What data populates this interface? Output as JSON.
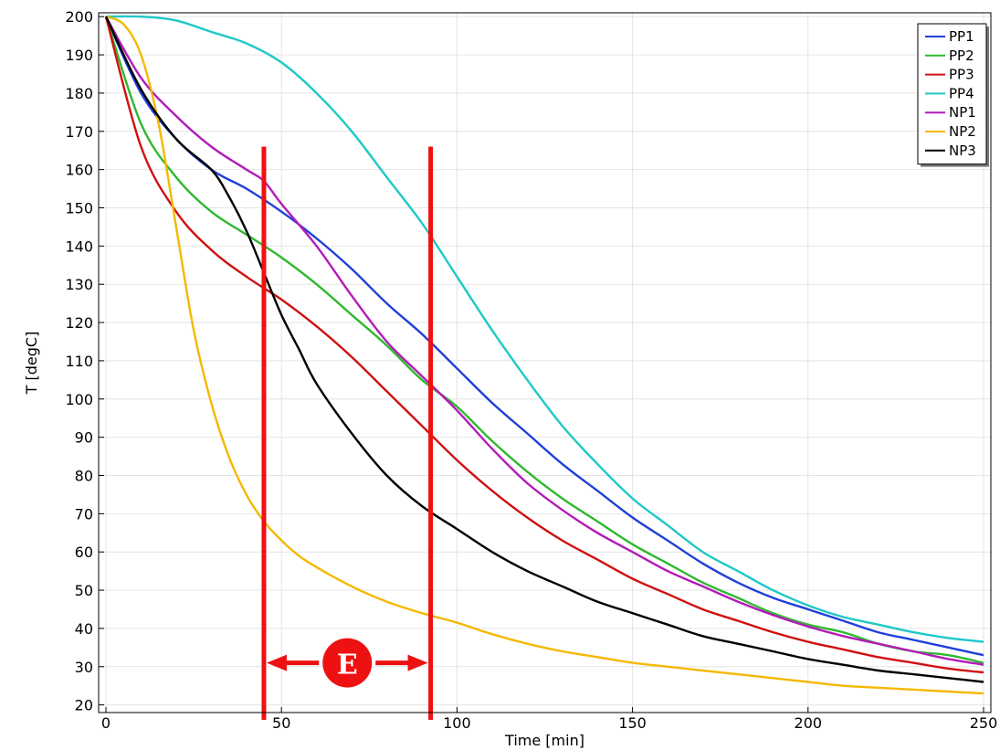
{
  "chart_data": {
    "type": "line",
    "xlabel": "Time [min]",
    "ylabel": "T [degC]",
    "xlim": [
      0,
      250
    ],
    "ylim": [
      18,
      201
    ],
    "xticks": [
      0,
      50,
      100,
      150,
      200,
      250
    ],
    "yticks": [
      20,
      30,
      40,
      50,
      60,
      70,
      80,
      90,
      100,
      110,
      120,
      130,
      140,
      150,
      160,
      170,
      180,
      190,
      200
    ],
    "grid": true,
    "legend_position": "top-right",
    "series": [
      {
        "name": "PP1",
        "color": "#1f3fd8",
        "x": [
          0,
          10,
          20,
          30,
          40,
          50,
          60,
          70,
          80,
          90,
          100,
          110,
          120,
          130,
          140,
          150,
          160,
          170,
          180,
          190,
          200,
          210,
          220,
          230,
          240,
          250
        ],
        "y": [
          200,
          180,
          168,
          160,
          155,
          149,
          142,
          134,
          125,
          117,
          108,
          99,
          91,
          83,
          76,
          69,
          63,
          57,
          52,
          48,
          45,
          42,
          39,
          37,
          35,
          33
        ]
      },
      {
        "name": "PP2",
        "color": "#2fb82f",
        "x": [
          0,
          10,
          20,
          30,
          40,
          50,
          60,
          70,
          80,
          90,
          100,
          110,
          120,
          130,
          140,
          150,
          160,
          170,
          180,
          190,
          200,
          210,
          220,
          230,
          240,
          250
        ],
        "y": [
          200,
          172,
          158,
          149,
          143,
          137,
          130,
          122,
          114,
          105,
          98,
          89,
          81,
          74,
          68,
          62,
          57,
          52,
          48,
          44,
          41,
          39,
          36,
          34,
          33,
          31
        ]
      },
      {
        "name": "PP3",
        "color": "#d01010",
        "x": [
          0,
          10,
          20,
          30,
          40,
          50,
          60,
          70,
          80,
          90,
          100,
          110,
          120,
          130,
          140,
          150,
          160,
          170,
          180,
          190,
          200,
          210,
          220,
          230,
          240,
          250
        ],
        "y": [
          200,
          166,
          149,
          139,
          132,
          126,
          119,
          111,
          102,
          93,
          84,
          76,
          69,
          63,
          58,
          53,
          49,
          45,
          42,
          39,
          36.5,
          34.5,
          32.5,
          31,
          29.5,
          28.5
        ]
      },
      {
        "name": "PP4",
        "color": "#1ec8c8",
        "x": [
          0,
          10,
          20,
          30,
          40,
          50,
          60,
          70,
          80,
          90,
          100,
          110,
          120,
          130,
          140,
          150,
          160,
          170,
          180,
          190,
          200,
          210,
          220,
          230,
          240,
          250
        ],
        "y": [
          200,
          200,
          199,
          196,
          193,
          188,
          180,
          170,
          158,
          146,
          132,
          118,
          105,
          93,
          83,
          74,
          67,
          60,
          55,
          50,
          46,
          43,
          41,
          39,
          37.5,
          36.5
        ]
      },
      {
        "name": "NP1",
        "color": "#b21bb8",
        "x": [
          0,
          10,
          20,
          30,
          40,
          45,
          50,
          60,
          70,
          80,
          90,
          100,
          110,
          120,
          130,
          140,
          150,
          160,
          170,
          180,
          190,
          200,
          210,
          220,
          230,
          240,
          250
        ],
        "y": [
          200,
          184,
          174,
          166,
          160,
          157,
          151,
          140,
          127,
          115,
          106,
          97,
          87,
          78,
          71,
          65,
          60,
          55,
          51,
          47,
          43.5,
          40.5,
          38,
          36,
          34,
          32,
          30.5
        ]
      },
      {
        "name": "NP2",
        "color": "#f5b800",
        "x": [
          0,
          5,
          10,
          15,
          20,
          25,
          30,
          35,
          40,
          45,
          50,
          55,
          60,
          70,
          80,
          90,
          100,
          110,
          120,
          130,
          140,
          150,
          160,
          170,
          180,
          190,
          200,
          210,
          220,
          230,
          240,
          250
        ],
        "y": [
          200,
          198,
          190,
          172,
          145,
          118,
          99,
          85,
          75,
          68,
          63,
          59,
          56,
          51,
          47,
          44,
          41.5,
          38.5,
          36,
          34,
          32.5,
          31,
          30,
          29,
          28,
          27,
          26,
          25,
          24.5,
          24,
          23.5,
          23
        ]
      },
      {
        "name": "NP3",
        "color": "#000000",
        "x": [
          0,
          10,
          20,
          30,
          35,
          40,
          45,
          50,
          55,
          60,
          70,
          80,
          90,
          100,
          110,
          120,
          130,
          140,
          150,
          160,
          170,
          180,
          190,
          200,
          210,
          220,
          230,
          240,
          250
        ],
        "y": [
          200,
          181,
          168,
          160,
          153,
          144,
          133,
          122,
          113,
          104,
          91,
          80,
          72,
          66,
          60,
          55,
          51,
          47,
          44,
          41,
          38,
          36,
          34,
          32,
          30.5,
          29,
          28,
          27,
          26
        ]
      }
    ],
    "annotations": [
      {
        "type": "vertical-line",
        "x": 45,
        "color": "#ee1111"
      },
      {
        "type": "vertical-line",
        "x": 92.5,
        "color": "#ee1111"
      },
      {
        "type": "double-arrow",
        "from": 45,
        "to": 92.5,
        "y": 31,
        "label": "E",
        "color": "#ee1111"
      }
    ]
  }
}
